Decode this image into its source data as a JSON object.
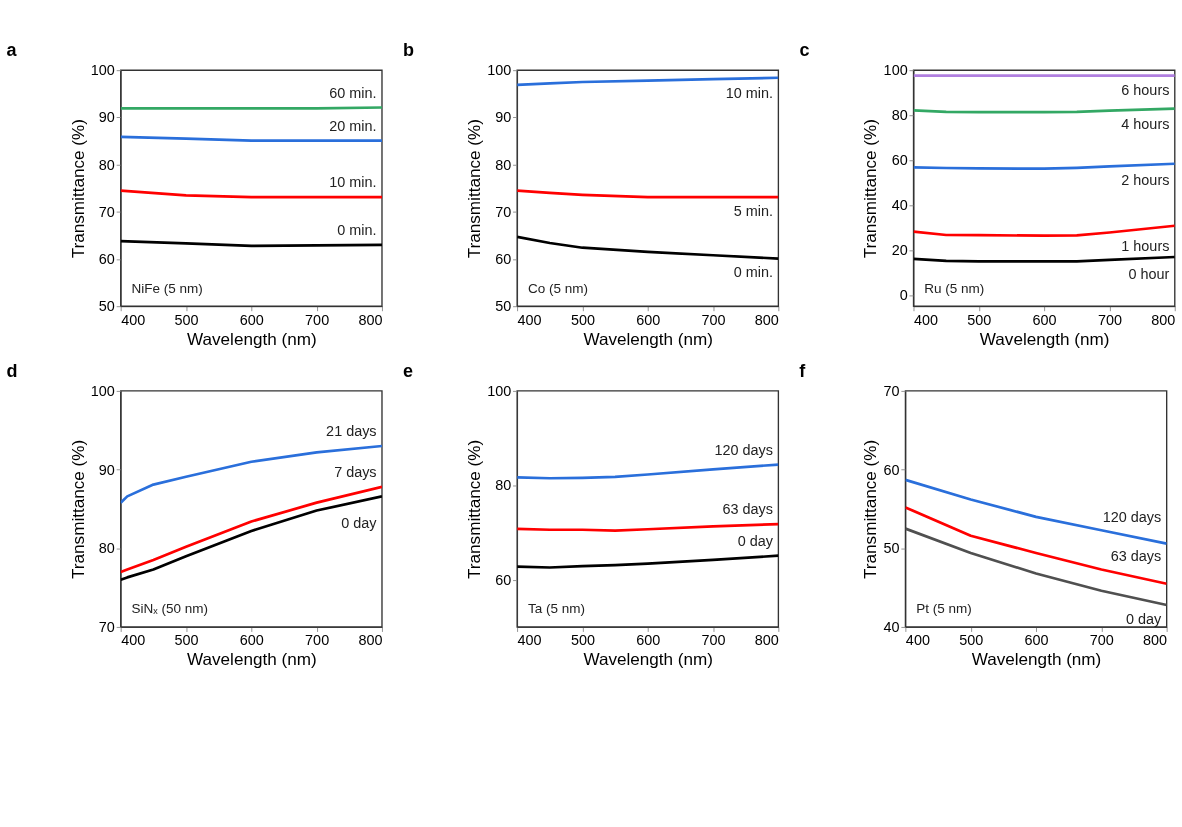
{
  "chart_data": [
    {
      "type": "line",
      "title": "a",
      "xlabel": "Wavelength (nm)",
      "ylabel": "Transmittance (%)",
      "xlim": [
        400,
        800
      ],
      "xticks": [
        400,
        500,
        600,
        700,
        800
      ],
      "ylim": [
        50,
        100
      ],
      "yticks": [
        50,
        60,
        70,
        80,
        90,
        100
      ],
      "grid": false,
      "legend": false,
      "annotations": [
        "NiFe (5 nm)"
      ],
      "x": [
        400,
        500,
        600,
        700,
        800
      ],
      "series": [
        {
          "name": "0 min.",
          "color": "#000000",
          "values": [
            63.8,
            63.3,
            62.8,
            62.9,
            63.0
          ]
        },
        {
          "name": "10 min.",
          "color": "#ff0000",
          "values": [
            74.5,
            73.5,
            73.1,
            73.1,
            73.1
          ]
        },
        {
          "name": "20 min.",
          "color": "#2a6fdb",
          "values": [
            85.9,
            85.5,
            85.1,
            85.1,
            85.1
          ]
        },
        {
          "name": "60 min.",
          "color": "#33a864",
          "values": [
            91.9,
            91.9,
            91.9,
            91.9,
            92.1
          ]
        }
      ]
    },
    {
      "type": "line",
      "title": "b",
      "xlabel": "Wavelength (nm)",
      "ylabel": "Transmittance (%)",
      "xlim": [
        400,
        800
      ],
      "xticks": [
        400,
        500,
        600,
        700,
        800
      ],
      "ylim": [
        50,
        100
      ],
      "yticks": [
        50,
        60,
        70,
        80,
        90,
        100
      ],
      "grid": false,
      "legend": false,
      "annotations": [
        "Co (5 nm)"
      ],
      "x": [
        400,
        450,
        500,
        600,
        700,
        800
      ],
      "series": [
        {
          "name": "0 min.",
          "color": "#000000",
          "values": [
            64.7,
            63.4,
            62.4,
            61.5,
            60.8,
            60.1
          ]
        },
        {
          "name": "5 min.",
          "color": "#ff0000",
          "values": [
            74.5,
            74.0,
            73.6,
            73.1,
            73.1,
            73.1
          ]
        },
        {
          "name": "10 min.",
          "color": "#2a6fdb",
          "values": [
            96.9,
            97.2,
            97.5,
            97.8,
            98.1,
            98.4
          ]
        }
      ]
    },
    {
      "type": "line",
      "title": "c",
      "xlabel": "Wavelength (nm)",
      "ylabel": "Transmittance (%)",
      "xlim": [
        400,
        800
      ],
      "xticks": [
        400,
        500,
        600,
        700,
        800
      ],
      "ylim": [
        -5,
        100
      ],
      "yticks": [
        0,
        20,
        40,
        60,
        80,
        100
      ],
      "grid": false,
      "legend": false,
      "annotations": [
        "Ru (5 nm)"
      ],
      "x": [
        400,
        450,
        500,
        600,
        650,
        700,
        800
      ],
      "series": [
        {
          "name": "0 hour",
          "color": "#000000",
          "values": [
            16.1,
            15.2,
            15.0,
            15.0,
            15.0,
            15.6,
            16.9
          ]
        },
        {
          "name": "1 hours",
          "color": "#ff0000",
          "values": [
            28.2,
            26.7,
            26.6,
            26.4,
            26.5,
            27.8,
            30.8
          ]
        },
        {
          "name": "2 hours",
          "color": "#2a6fdb",
          "values": [
            56.8,
            56.5,
            56.3,
            56.2,
            56.6,
            57.2,
            58.4
          ]
        },
        {
          "name": "4 hours",
          "color": "#33a864",
          "values": [
            82.1,
            81.5,
            81.4,
            81.4,
            81.5,
            82.0,
            82.9
          ]
        },
        {
          "name": "6 hours",
          "color": "#b07fe0",
          "values": [
            97.6,
            97.6,
            97.6,
            97.6,
            97.6,
            97.6,
            97.6
          ]
        }
      ]
    },
    {
      "type": "line",
      "title": "d",
      "xlabel": "Wavelength (nm)",
      "ylabel": "Transmittance (%)",
      "xlim": [
        400,
        800
      ],
      "xticks": [
        400,
        500,
        600,
        700,
        800
      ],
      "ylim": [
        70,
        100
      ],
      "yticks": [
        70,
        80,
        90,
        100
      ],
      "grid": false,
      "legend": false,
      "annotations": [
        "SiNₓ (50 nm)"
      ],
      "x": [
        400,
        410,
        450,
        500,
        600,
        700,
        800
      ],
      "series": [
        {
          "name": "0 day",
          "color": "#000000",
          "values": [
            76.0,
            76.3,
            77.3,
            79.0,
            82.2,
            84.8,
            86.6
          ]
        },
        {
          "name": "7 days",
          "color": "#ff0000",
          "values": [
            77.0,
            77.3,
            78.5,
            80.2,
            83.4,
            85.8,
            87.8
          ]
        },
        {
          "name": "21 days",
          "color": "#2a6fdb",
          "values": [
            85.8,
            86.6,
            88.1,
            89.1,
            91.0,
            92.2,
            93.0
          ]
        }
      ]
    },
    {
      "type": "line",
      "title": "e",
      "xlabel": "Wavelength (nm)",
      "ylabel": "Transmittance (%)",
      "xlim": [
        400,
        800
      ],
      "xticks": [
        400,
        500,
        600,
        700,
        800
      ],
      "ylim": [
        50,
        100
      ],
      "yticks": [
        60,
        80,
        100
      ],
      "grid": false,
      "legend": false,
      "annotations": [
        "Ta (5 nm)"
      ],
      "x": [
        400,
        450,
        500,
        550,
        600,
        700,
        800
      ],
      "series": [
        {
          "name": "0 day",
          "color": "#000000",
          "values": [
            62.8,
            62.6,
            62.9,
            63.1,
            63.4,
            64.2,
            65.1
          ]
        },
        {
          "name": "63 days",
          "color": "#ff0000",
          "values": [
            70.8,
            70.6,
            70.6,
            70.4,
            70.7,
            71.3,
            71.8
          ]
        },
        {
          "name": "120 days",
          "color": "#2a6fdb",
          "values": [
            81.7,
            81.5,
            81.6,
            81.8,
            82.3,
            83.4,
            84.4
          ]
        }
      ]
    },
    {
      "type": "line",
      "title": "f",
      "xlabel": "Wavelength (nm)",
      "ylabel": "Transmittance (%)",
      "xlim": [
        400,
        800
      ],
      "xticks": [
        400,
        500,
        600,
        700,
        800
      ],
      "ylim": [
        40,
        70
      ],
      "yticks": [
        40,
        50,
        60,
        70
      ],
      "grid": false,
      "legend": false,
      "annotations": [
        "Pt (5 nm)"
      ],
      "x": [
        400,
        500,
        600,
        700,
        800
      ],
      "series": [
        {
          "name": "0 day",
          "color": "#505050",
          "values": [
            52.5,
            49.4,
            46.8,
            44.6,
            42.8
          ]
        },
        {
          "name": "63 days",
          "color": "#ff0000",
          "values": [
            55.2,
            51.6,
            49.4,
            47.3,
            45.5
          ]
        },
        {
          "name": "120 days",
          "color": "#2a6fdb",
          "values": [
            58.7,
            56.2,
            54.0,
            52.3,
            50.6
          ]
        }
      ]
    }
  ]
}
